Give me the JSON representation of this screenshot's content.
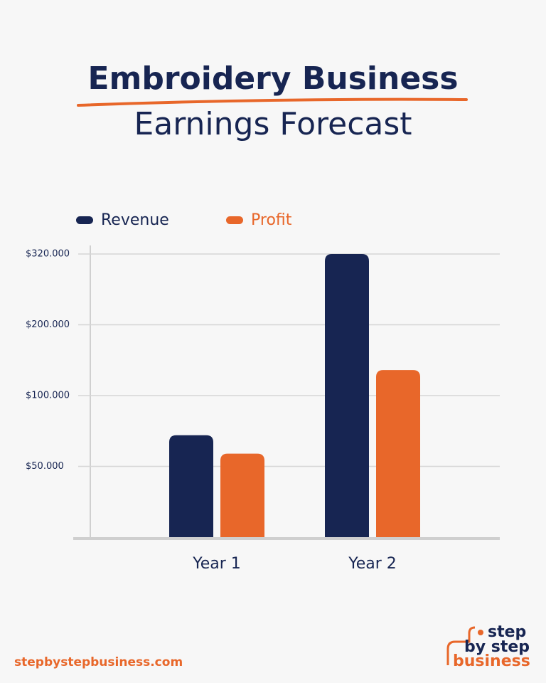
{
  "chart_data": {
    "type": "bar",
    "title": "Embroidery Business",
    "subtitle": "Earnings Forecast",
    "categories": [
      "Year 1",
      "Year 2"
    ],
    "series": [
      {
        "name": "Revenue",
        "color": "#172552",
        "values": [
          72000,
          320000
        ]
      },
      {
        "name": "Profit",
        "color": "#e8672a",
        "values": [
          59000,
          136000
        ]
      }
    ],
    "ylim": [
      0,
      320000
    ],
    "yticks": [
      {
        "value": 50000,
        "label": "$50.000"
      },
      {
        "value": 100000,
        "label": "$100.000"
      },
      {
        "value": 200000,
        "label": "$200.000"
      },
      {
        "value": 320000,
        "label": "$320.000"
      }
    ],
    "grid": true,
    "legend": "top"
  },
  "footer": {
    "website": "stepbystepbusiness.com",
    "logo": [
      "step",
      "by step",
      "business"
    ]
  }
}
